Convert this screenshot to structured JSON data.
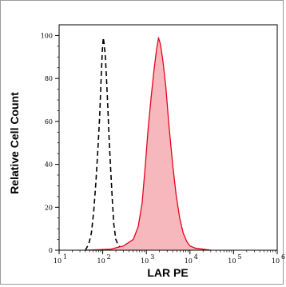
{
  "chart_data": {
    "type": "area",
    "xlabel": "LAR PE",
    "ylabel": "Relative Cell Count",
    "x_scale": "log",
    "xlim": [
      10,
      1000000
    ],
    "ylim": [
      0,
      105
    ],
    "x_ticks": [
      {
        "value": 10,
        "mantissa": "10",
        "exp": "1"
      },
      {
        "value": 100,
        "mantissa": "10",
        "exp": "2"
      },
      {
        "value": 1000,
        "mantissa": "10",
        "exp": "3"
      },
      {
        "value": 10000,
        "mantissa": "10",
        "exp": "4"
      },
      {
        "value": 100000,
        "mantissa": "10",
        "exp": "5"
      },
      {
        "value": 1000000,
        "mantissa": "10",
        "exp": "6"
      }
    ],
    "y_ticks": [
      "0",
      "20",
      "40",
      "60",
      "80",
      "100"
    ],
    "grid": false,
    "legend": "none",
    "series": [
      {
        "style": "dashed-outline",
        "color": "#000000",
        "points": [
          [
            40,
            0
          ],
          [
            48,
            3
          ],
          [
            55,
            8
          ],
          [
            62,
            18
          ],
          [
            70,
            32
          ],
          [
            78,
            48
          ],
          [
            85,
            62
          ],
          [
            92,
            80
          ],
          [
            98,
            93
          ],
          [
            103,
            99
          ],
          [
            108,
            96
          ],
          [
            115,
            90
          ],
          [
            122,
            80
          ],
          [
            130,
            68
          ],
          [
            140,
            52
          ],
          [
            152,
            38
          ],
          [
            165,
            24
          ],
          [
            180,
            12
          ],
          [
            200,
            5
          ],
          [
            230,
            2
          ],
          [
            280,
            0.5
          ]
        ]
      },
      {
        "style": "filled",
        "color": "#e8001c",
        "fill": "#f6b8bc",
        "points": [
          [
            40,
            0
          ],
          [
            150,
            0.5
          ],
          [
            300,
            2
          ],
          [
            500,
            5
          ],
          [
            650,
            11
          ],
          [
            800,
            22
          ],
          [
            950,
            40
          ],
          [
            1100,
            57
          ],
          [
            1300,
            72
          ],
          [
            1500,
            84
          ],
          [
            1700,
            93
          ],
          [
            1900,
            99
          ],
          [
            2100,
            96
          ],
          [
            2400,
            88
          ],
          [
            2800,
            76
          ],
          [
            3300,
            58
          ],
          [
            4000,
            40
          ],
          [
            4800,
            26
          ],
          [
            5800,
            15
          ],
          [
            7000,
            8
          ],
          [
            8500,
            4
          ],
          [
            10000,
            2
          ],
          [
            13000,
            1
          ],
          [
            20000,
            0.5
          ],
          [
            30000,
            0
          ]
        ]
      }
    ]
  }
}
